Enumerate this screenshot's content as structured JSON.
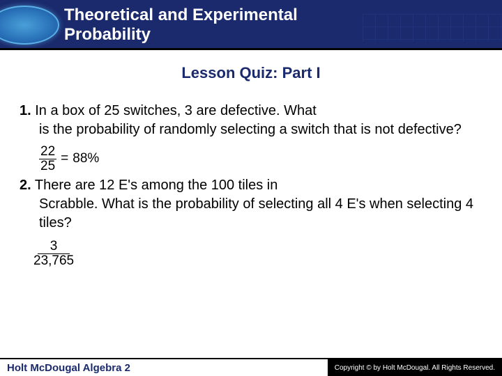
{
  "header": {
    "title_line1": "Theoretical and Experimental",
    "title_line2": "Probability"
  },
  "quiz": {
    "title": "Lesson Quiz: Part I",
    "q1": {
      "number": "1.",
      "text_first": "In a box of 25 switches, 3 are defective. What",
      "text_rest": "is the probability of randomly selecting a switch that is not defective?",
      "answer_numerator": "22",
      "answer_denominator": "25",
      "answer_equals": "=",
      "answer_percent": "88%"
    },
    "q2": {
      "number": "2.",
      "text_first": "There are 12 E's among the 100 tiles in",
      "text_rest": "Scrabble. What is the probability of selecting all 4 E's when selecting 4 tiles?",
      "answer_numerator": "3",
      "answer_denominator": "23,765"
    }
  },
  "footer": {
    "left": "Holt McDougal Algebra 2",
    "right": "Copyright © by Holt McDougal. All Rights Reserved."
  },
  "colors": {
    "header_bg": "#1a2a6c",
    "accent": "#1a2a6c",
    "oval_light": "#4a9fd8",
    "text": "#000000"
  }
}
